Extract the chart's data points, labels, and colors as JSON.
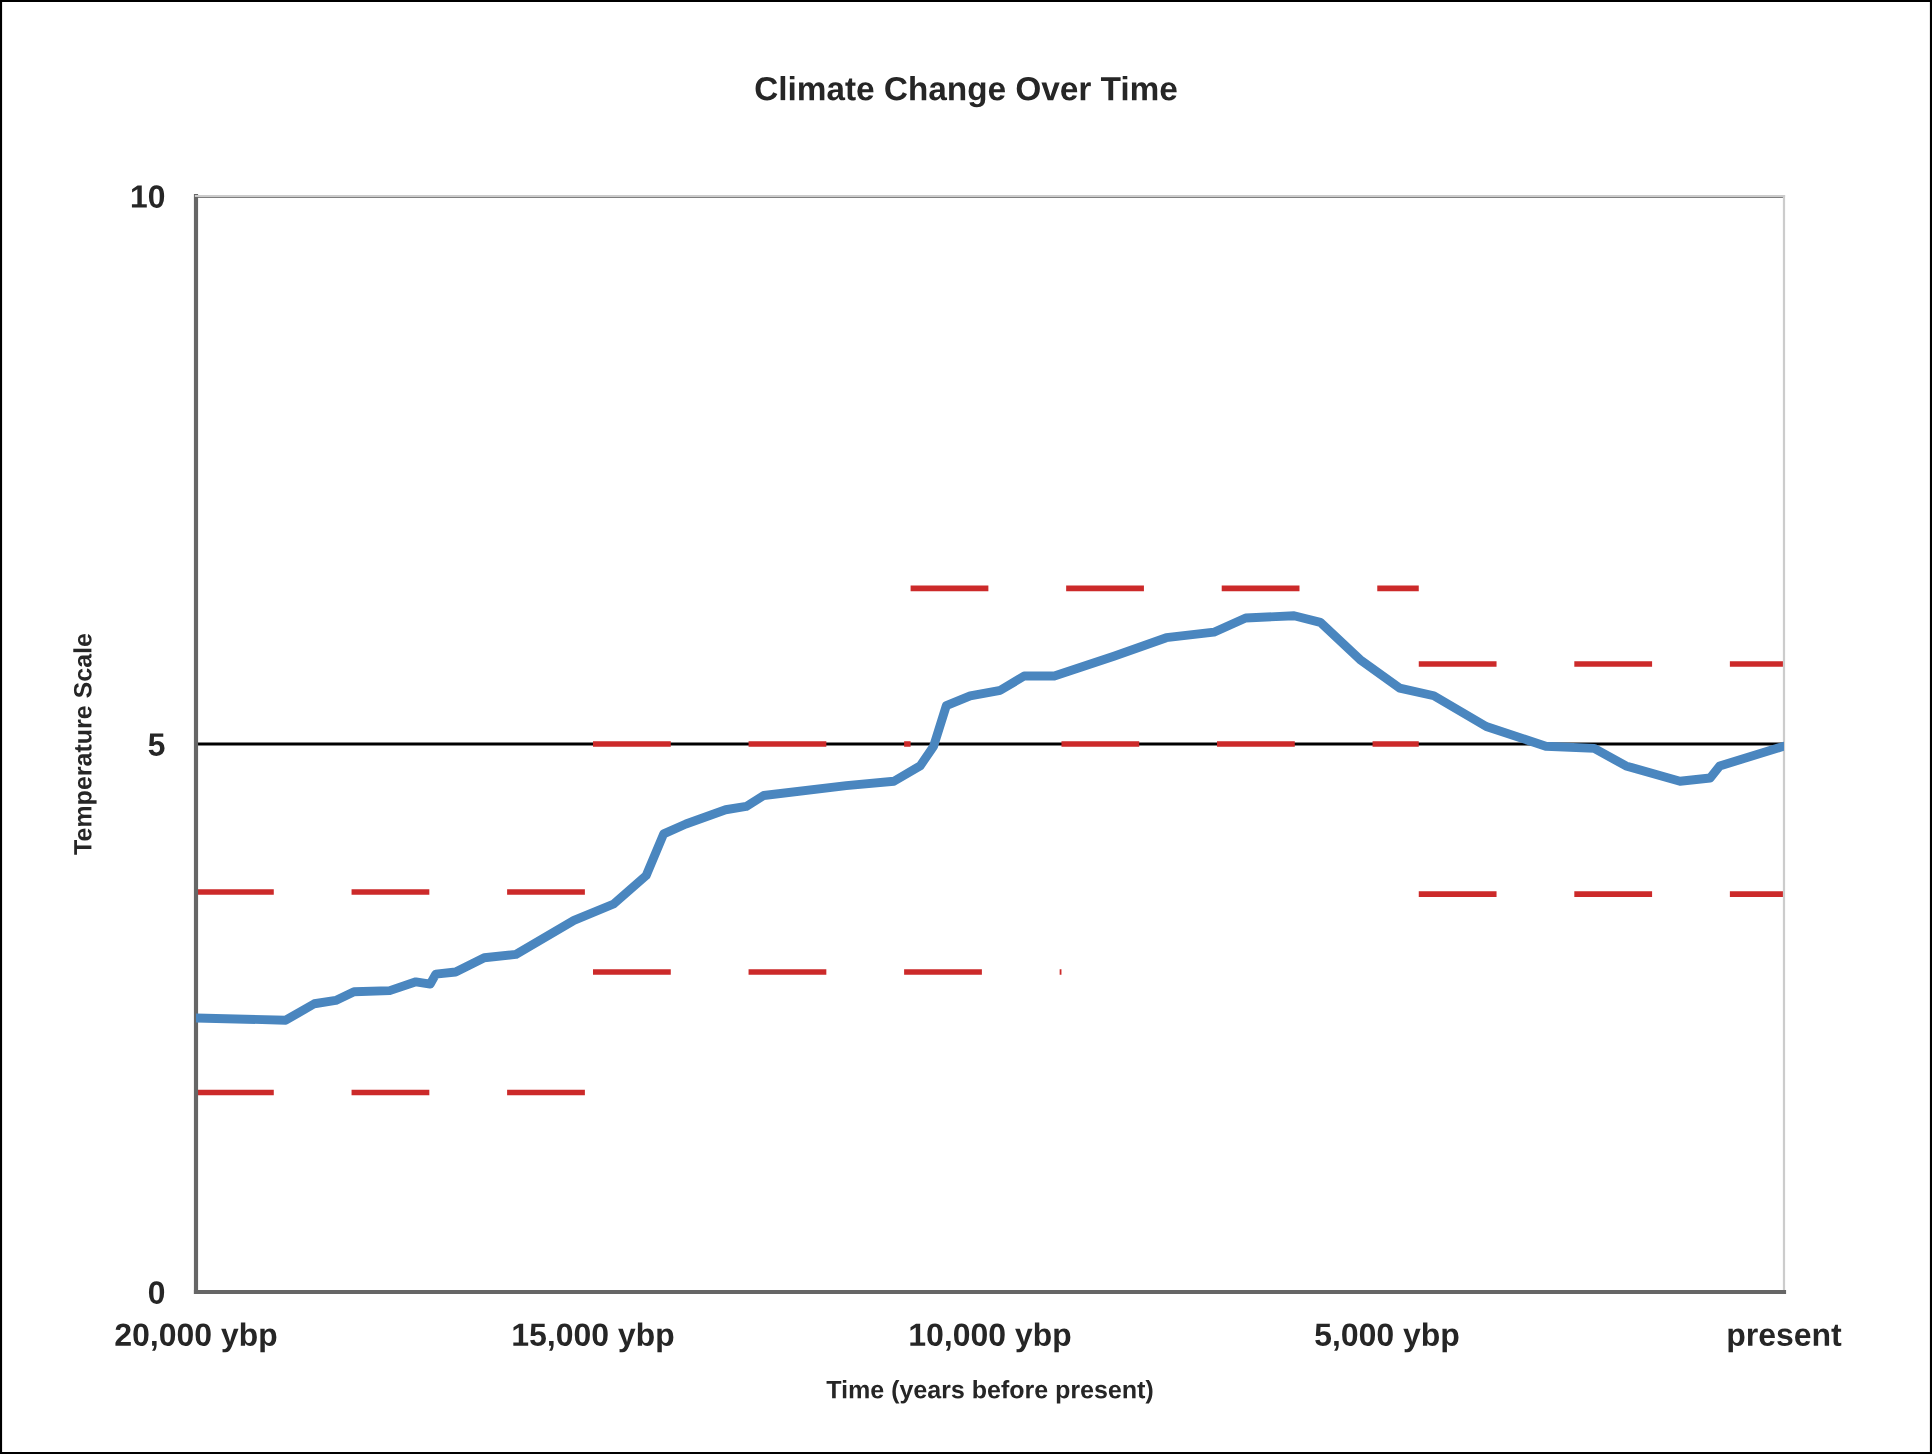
{
  "chart_data": {
    "type": "line",
    "title": "Climate Change Over Time",
    "xlabel": "Time (years before present)",
    "ylabel": "Temperature Scale",
    "xlim": [
      20000,
      0
    ],
    "xticks": [
      {
        "value": 20000,
        "label": "20,000 ybp"
      },
      {
        "value": 15000,
        "label": "15,000 ybp"
      },
      {
        "value": 10000,
        "label": "10,000 ybp"
      },
      {
        "value": 5000,
        "label": "5,000 ybp"
      },
      {
        "value": 0,
        "label": "present"
      }
    ],
    "ylim": [
      0,
      10
    ],
    "yticks": [
      0,
      5,
      10
    ],
    "grid": "y",
    "marker": "none",
    "series": [
      {
        "color": "#4a86bf",
        "line_style": "solid",
        "x": [
          20000,
          18870,
          18510,
          18240,
          18010,
          17560,
          17230,
          17050,
          16980,
          16730,
          16370,
          15970,
          15240,
          14740,
          14330,
          14110,
          13830,
          13330,
          13070,
          12850,
          11810,
          11210,
          10880,
          10710,
          10550,
          10250,
          9870,
          9570,
          9190,
          8440,
          7780,
          7180,
          6780,
          6170,
          5840,
          5340,
          4840,
          4410,
          3750,
          3000,
          2390,
          1990,
          1310,
          930,
          810,
          0
        ],
        "values": [
          2.5,
          2.48,
          2.63,
          2.66,
          2.74,
          2.75,
          2.83,
          2.81,
          2.9,
          2.92,
          3.05,
          3.08,
          3.39,
          3.54,
          3.8,
          4.18,
          4.27,
          4.4,
          4.43,
          4.53,
          4.62,
          4.66,
          4.8,
          4.98,
          5.35,
          5.44,
          5.49,
          5.62,
          5.62,
          5.8,
          5.97,
          6.02,
          6.15,
          6.17,
          6.11,
          5.77,
          5.51,
          5.44,
          5.16,
          4.98,
          4.96,
          4.8,
          4.66,
          4.69,
          4.8,
          4.98
        ]
      },
      {
        "color": "#cc2a2a",
        "line_style": "dashed",
        "x": [
          20000,
          15000
        ],
        "values": [
          3.65,
          3.65
        ]
      },
      {
        "color": "#cc2a2a",
        "line_style": "dashed",
        "x": [
          20000,
          15000
        ],
        "values": [
          1.82,
          1.82
        ]
      },
      {
        "color": "#cc2a2a",
        "line_style": "dashed",
        "x": [
          15000,
          11000
        ],
        "values": [
          5.0,
          5.0
        ]
      },
      {
        "color": "#cc2a2a",
        "line_style": "dashed",
        "x": [
          15000,
          9100
        ],
        "values": [
          2.92,
          2.92
        ]
      },
      {
        "color": "#cc2a2a",
        "line_style": "dashed",
        "x": [
          11000,
          4600
        ],
        "values": [
          6.42,
          6.42
        ]
      },
      {
        "color": "#cc2a2a",
        "line_style": "dashed",
        "x": [
          9100,
          4600
        ],
        "values": [
          5.0,
          5.0
        ]
      },
      {
        "color": "#cc2a2a",
        "line_style": "dashed",
        "x": [
          4600,
          0
        ],
        "values": [
          5.73,
          5.73
        ]
      },
      {
        "color": "#cc2a2a",
        "line_style": "dashed",
        "x": [
          4600,
          0
        ],
        "values": [
          3.63,
          3.63
        ]
      }
    ]
  }
}
